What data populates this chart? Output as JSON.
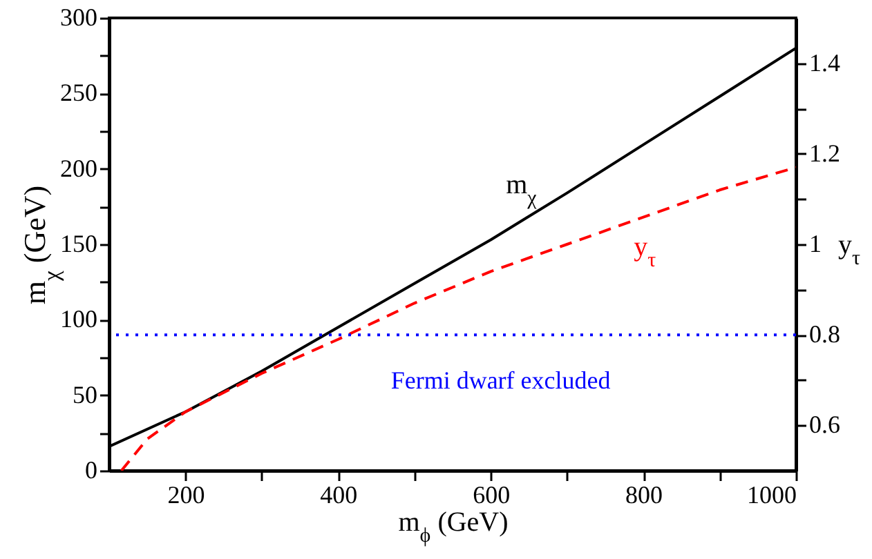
{
  "chart_data": {
    "type": "line",
    "xlabel": "m$_{ϕ}$ (GeV)",
    "ylabel": "m$_{χ}$ (GeV)",
    "y2label": "y$_{τ}$",
    "xlim": [
      100,
      1000
    ],
    "xticks": [
      200,
      {
        "value": 300,
        "label": null
      },
      400,
      {
        "value": 500,
        "label": null
      },
      600,
      {
        "value": 700,
        "label": null
      },
      800,
      {
        "value": 900,
        "label": null
      },
      1000
    ],
    "ylim": [
      0,
      300
    ],
    "yticks": [
      0,
      {
        "value": 25,
        "label": null
      },
      50,
      {
        "value": 75,
        "label": null
      },
      100,
      {
        "value": 125,
        "label": null
      },
      150,
      {
        "value": 175,
        "label": null
      },
      200,
      {
        "value": 225,
        "label": null
      },
      250,
      {
        "value": 275,
        "label": null
      },
      300
    ],
    "y2lim": [
      0.5,
      1.5
    ],
    "y2ticks": [
      0.6,
      {
        "value": 0.7,
        "label": null
      },
      0.8,
      {
        "value": 0.9,
        "label": null
      },
      1,
      {
        "value": 1.1,
        "label": null
      },
      1.2,
      {
        "value": 1.3,
        "label": null
      },
      1.4
    ],
    "grid": false,
    "ref_lines": [
      {
        "axis": "y2",
        "value": 0.8,
        "label": "Fermi dwarf excluded",
        "color": "#0000ff",
        "line_style": "dotted"
      }
    ],
    "series": [
      {
        "name": "m$_{χ}$",
        "color": "#000000",
        "line_style": "solid",
        "x": [
          100,
          200,
          300,
          400,
          500,
          600,
          700,
          800,
          900,
          1000
        ],
        "values": [
          16,
          39,
          66,
          95,
          124,
          153,
          184,
          216,
          248,
          280
        ]
      },
      {
        "name": "y$_{τ}$",
        "color": "#ff0000",
        "line_style": "dashed",
        "axis": "y2",
        "x": [
          116,
          150,
          200,
          300,
          400,
          500,
          600,
          700,
          800,
          900,
          1000
        ],
        "values": [
          0.5,
          0.57,
          0.63,
          0.715,
          0.79,
          0.87,
          0.94,
          1.0,
          1.06,
          1.12,
          1.17
        ]
      }
    ]
  }
}
